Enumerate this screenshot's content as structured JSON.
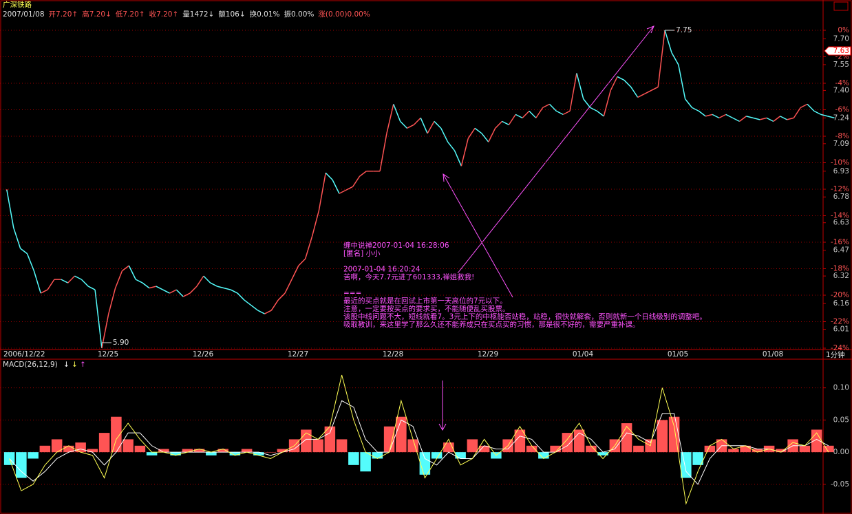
{
  "chart_data": [
    {
      "type": "price",
      "title": "广深铁路",
      "info": [
        {
          "text": "2007/01/08",
          "color": "#e0e0e0"
        },
        {
          "text": "开7.20↑",
          "color": "#ff5454"
        },
        {
          "text": "高7.20↓",
          "color": "#ff5454"
        },
        {
          "text": "低7.20↑",
          "color": "#ff5454"
        },
        {
          "text": "收7.20↑",
          "color": "#ff5454"
        },
        {
          "text": "量1472↓",
          "color": "#e0e0e0"
        },
        {
          "text": "额106↓",
          "color": "#e0e0e0"
        },
        {
          "text": "换0.01%",
          "color": "#e0e0e0"
        },
        {
          "text": "振0.00%",
          "color": "#e0e0e0"
        },
        {
          "text": "涨(0.00)0.00%",
          "color": "#ff5454"
        }
      ],
      "categories": [
        "2006/12/22",
        "12/25",
        "12/26",
        "12/27",
        "12/28",
        "12/29",
        "01/04",
        "01/05",
        "01/08"
      ],
      "values": [
        [
          6.82,
          6.6,
          6.48,
          6.45,
          6.35,
          6.22,
          6.24,
          6.3,
          6.3,
          6.28,
          6.32,
          6.3,
          6.26,
          6.24
        ],
        [
          5.9,
          6.1,
          6.25,
          6.35,
          6.38,
          6.3,
          6.28,
          6.25,
          6.26,
          6.24,
          6.22,
          6.24,
          6.2,
          6.22
        ],
        [
          6.26,
          6.32,
          6.28,
          6.26,
          6.25,
          6.24,
          6.22,
          6.18,
          6.15,
          6.12,
          6.1,
          6.12,
          6.18,
          6.22
        ],
        [
          6.3,
          6.38,
          6.42,
          6.55,
          6.7,
          6.92,
          6.88,
          6.8,
          6.82,
          6.84,
          6.9,
          6.93,
          6.93,
          6.93
        ],
        [
          7.15,
          7.32,
          7.22,
          7.18,
          7.2,
          7.24,
          7.15,
          7.22,
          7.18,
          7.1,
          7.05,
          6.96,
          7.12,
          7.18
        ],
        [
          7.15,
          7.1,
          7.18,
          7.22,
          7.2,
          7.26,
          7.24,
          7.28,
          7.24,
          7.3,
          7.32,
          7.28,
          7.26,
          7.28
        ],
        [
          7.5,
          7.35,
          7.3,
          7.28,
          7.25,
          7.4,
          7.48,
          7.46,
          7.42,
          7.36,
          7.38,
          7.4,
          7.42,
          7.75
        ],
        [
          7.62,
          7.55,
          7.35,
          7.3,
          7.28,
          7.25,
          7.26,
          7.24,
          7.26,
          7.24,
          7.22,
          7.25,
          7.24,
          7.23
        ],
        [
          7.24,
          7.22,
          7.25,
          7.23,
          7.24,
          7.3,
          7.32,
          7.28,
          7.26,
          7.25,
          7.24
        ]
      ],
      "up_color": "#ff5454",
      "down_color": "#54fcfc",
      "ylim": [
        5.9,
        7.75
      ],
      "yticks": [
        {
          "value": 7.7,
          "label": "7.70"
        },
        7.55,
        {
          "value": 7.4,
          "label": "7.40"
        },
        7.24,
        7.09,
        6.93,
        6.78,
        6.63,
        6.47,
        6.32,
        6.16,
        6.01
      ],
      "y2lim": [
        -24,
        0
      ],
      "y2ticks": [
        {
          "value": 0,
          "label": "0%"
        },
        {
          "value": -2,
          "label": "-2%"
        },
        {
          "value": -4,
          "label": "-4%"
        },
        {
          "value": -6,
          "label": "-6%"
        },
        {
          "value": -8,
          "label": "-8%"
        },
        {
          "value": -10,
          "label": "-10%"
        },
        {
          "value": -12,
          "label": "-12%"
        },
        {
          "value": -14,
          "label": "-14%"
        },
        {
          "value": -16,
          "label": "-16%"
        },
        {
          "value": -18,
          "label": "-18%"
        },
        {
          "value": -20,
          "label": "-20%"
        },
        {
          "value": -22,
          "label": "-22%"
        },
        {
          "value": -24,
          "label": "-24%"
        }
      ],
      "grid": true,
      "last_price": 7.63,
      "high_label": 7.75,
      "low_label": {
        "value": 5.9,
        "label": "5.90"
      },
      "period": "1分钟",
      "annotation": [
        [
          "缠中说禅2007-01-04 16:28:06",
          "[匿名] 小小"
        ],
        [
          "2007-01-04 16:20:24",
          "苦啊，今天7.7元进了601333,禅姐救我!"
        ],
        [
          "===",
          "最近的买点就是在回试上市第一天高位的7元以下。",
          "注意，一定要按买点的要求买，不能随便乱买股票。",
          "该股中线问题不大，短线就看7。3元上下的中枢能否站稳，站稳，很快就解套，否则就新一个日线级别的调整吧。",
          "吸取教训，来这里学了那么久还不能养成只在买点买的习惯，那是很不好的，需要严重补课。"
        ]
      ]
    },
    {
      "type": "macd",
      "title": "MACD(26,12,9)",
      "arrows": [
        {
          "text": "↓",
          "color": "#ffffff"
        },
        {
          "text": "↓",
          "color": "#ffff54"
        },
        {
          "text": "↑",
          "color": "#ff54ff"
        }
      ],
      "histogram": [
        [
          -0.02,
          -0.04,
          -0.01,
          0.01,
          0.02,
          0.01,
          0.015,
          0.005
        ],
        [
          0.03,
          0.055,
          0.02,
          0.01,
          -0.005,
          0.005,
          -0.005,
          0.005
        ],
        [
          0.005,
          -0.005,
          0.005,
          -0.005,
          0.005,
          -0.005,
          0.0,
          0.005
        ],
        [
          0.02,
          0.035,
          0.02,
          0.04,
          0.02,
          -0.02,
          -0.03,
          -0.01
        ],
        [
          0.04,
          0.055,
          0.02,
          -0.035,
          -0.01,
          0.015,
          -0.01,
          0.02
        ],
        [
          0.01,
          -0.01,
          0.02,
          0.035,
          0.01,
          -0.01,
          0.01,
          0.03
        ],
        [
          0.035,
          0.01,
          -0.005,
          0.02,
          0.045,
          0.01,
          0.02,
          0.05
        ],
        [
          0.055,
          -0.04,
          -0.02,
          0.01,
          0.02,
          0.005,
          0.01,
          0.005
        ],
        [
          0.01,
          0.005,
          0.02,
          0.01,
          0.035,
          0.01
        ]
      ],
      "dif": [
        [
          -0.01,
          -0.06,
          -0.05,
          -0.02,
          0.0,
          0.01,
          0.0,
          -0.005
        ],
        [
          -0.04,
          0.02,
          0.045,
          0.02,
          0.0,
          0.0,
          -0.005,
          0.0
        ],
        [
          0.005,
          0.0,
          0.005,
          -0.005,
          0.0,
          -0.005,
          -0.01,
          0.0
        ],
        [
          0.01,
          0.03,
          0.02,
          0.04,
          0.12,
          0.05,
          0.0,
          -0.01
        ],
        [
          0.0,
          0.08,
          0.02,
          -0.04,
          -0.01,
          0.02,
          -0.02,
          -0.01
        ],
        [
          0.02,
          -0.005,
          0.01,
          0.04,
          0.01,
          -0.01,
          0.0,
          0.02
        ],
        [
          0.045,
          0.01,
          -0.01,
          0.01,
          0.04,
          0.02,
          0.01,
          0.1
        ],
        [
          0.04,
          -0.08,
          -0.03,
          0.01,
          0.02,
          0.005,
          0.01,
          0.0
        ],
        [
          0.005,
          0.0,
          0.015,
          0.01,
          0.03,
          0.0
        ]
      ],
      "dea": [
        [
          -0.01,
          -0.03,
          -0.045,
          -0.03,
          -0.01,
          0.0,
          0.005,
          0.0
        ],
        [
          -0.02,
          0.0,
          0.03,
          0.03,
          0.01,
          0.0,
          0.0,
          0.0
        ],
        [
          0.0,
          0.0,
          0.0,
          0.0,
          0.0,
          0.0,
          -0.005,
          0.0
        ],
        [
          0.005,
          0.02,
          0.02,
          0.03,
          0.08,
          0.07,
          0.02,
          0.0
        ],
        [
          0.0,
          0.05,
          0.04,
          -0.01,
          -0.02,
          0.0,
          -0.01,
          -0.01
        ],
        [
          0.01,
          0.005,
          0.005,
          0.025,
          0.02,
          0.0,
          0.0,
          0.01
        ],
        [
          0.03,
          0.02,
          0.0,
          0.005,
          0.03,
          0.025,
          0.015,
          0.06
        ],
        [
          0.06,
          -0.03,
          -0.05,
          -0.01,
          0.01,
          0.01,
          0.01,
          0.005
        ],
        [
          0.005,
          0.0,
          0.01,
          0.01,
          0.02,
          0.01
        ]
      ],
      "dif_color": "#ffff54",
      "dea_color": "#ffffff",
      "up_color": "#ff5454",
      "down_color": "#54fcfc",
      "ylim": [
        -0.094,
        0.136
      ],
      "yticks": [
        {
          "value": 0.1,
          "label": "0.10"
        },
        {
          "value": 0.05,
          "label": "0.05"
        },
        {
          "value": 0,
          "label": "0.00"
        },
        {
          "value": -0.05,
          "label": "-0.05"
        }
      ],
      "grid": true
    }
  ]
}
